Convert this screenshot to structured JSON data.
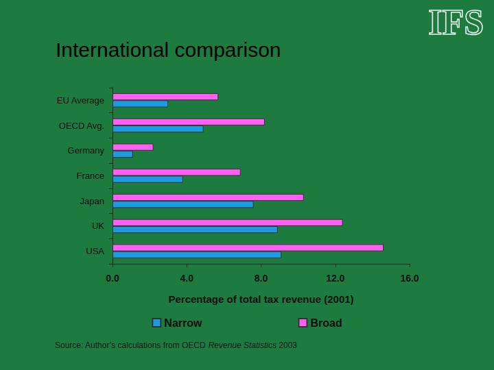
{
  "logo": "IFS",
  "source": [
    "Source: Author’s calculations from OECD ",
    "Revenue Statistics",
    " 2003"
  ],
  "chart_data": {
    "type": "bar",
    "title": "International comparison",
    "orientation": "horizontal",
    "categories": [
      "EU Average",
      "OECD Avg.",
      "Germany",
      "France",
      "Japan",
      "UK",
      "USA"
    ],
    "series": [
      {
        "name": "Narrow",
        "color": "#1c9be0",
        "values": [
          3.0,
          4.9,
          1.1,
          3.8,
          7.6,
          8.9,
          9.1
        ]
      },
      {
        "name": "Broad",
        "color": "#ff5ff5",
        "values": [
          5.7,
          8.2,
          2.2,
          6.9,
          10.3,
          12.4,
          14.6
        ]
      }
    ],
    "xlabel": "Percentage of total tax revenue (2001)",
    "xlim": [
      0,
      16
    ],
    "xticks": [
      {
        "value": 0,
        "label": "0.0"
      },
      {
        "value": 4,
        "label": "4.0"
      },
      {
        "value": 8,
        "label": "8.0"
      },
      {
        "value": 12,
        "label": "12.0"
      },
      {
        "value": 16,
        "label": "16.0"
      }
    ],
    "grid": false,
    "legend": "bottom"
  }
}
